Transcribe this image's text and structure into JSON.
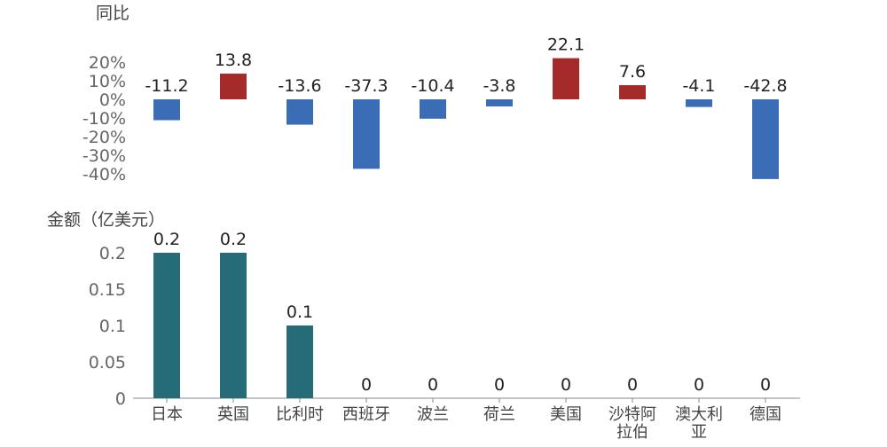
{
  "chart_data": [
    {
      "type": "bar",
      "ylabel": "同比",
      "categories": [
        "日本",
        "英国",
        "比利时",
        "西班牙",
        "波兰",
        "荷兰",
        "美国",
        "沙特阿拉伯",
        "澳大利亚",
        "德国"
      ],
      "series": [
        {
          "values": [
            -11.2,
            13.8,
            -13.6,
            -37.3,
            -10.4,
            -3.8,
            22.1,
            7.6,
            -4.1,
            -42.8
          ],
          "data_labels": [
            "-11.2",
            "13.8",
            "-13.6",
            "-37.3",
            "-10.4",
            "-3.8",
            "22.1",
            "7.6",
            "-4.1",
            "-42.8"
          ]
        }
      ],
      "yticks": [
        "20%",
        "10%",
        "0%",
        "-10%",
        "-20%",
        "-30%",
        "-40%"
      ],
      "ylim": [
        -40,
        20
      ],
      "grid": false,
      "colors": {
        "positive": "#a52a2a",
        "negative": "#3a6db5"
      }
    },
    {
      "type": "bar",
      "ylabel": "金额（亿美元）",
      "categories": [
        "日本",
        "英国",
        "比利时",
        "西班牙",
        "波兰",
        "荷兰",
        "美国",
        "沙特阿拉伯",
        "澳大利亚",
        "德国"
      ],
      "category_label_lines": [
        [
          "日本"
        ],
        [
          "英国"
        ],
        [
          "比利时"
        ],
        [
          "西班牙"
        ],
        [
          "波兰"
        ],
        [
          "荷兰"
        ],
        [
          "美国"
        ],
        [
          "沙特阿",
          "拉伯"
        ],
        [
          "澳大利",
          "亚"
        ],
        [
          "德国"
        ]
      ],
      "series": [
        {
          "values": [
            0.2,
            0.2,
            0.1,
            0,
            0,
            0,
            0,
            0,
            0,
            0
          ],
          "data_labels": [
            "0.2",
            "0.2",
            "0.1",
            "0",
            "0",
            "0",
            "0",
            "0",
            "0",
            "0"
          ]
        }
      ],
      "yticks": [
        "0.2",
        "0.15",
        "0.1",
        "0.05",
        "0"
      ],
      "ylim": [
        0,
        0.2
      ],
      "grid": false,
      "colors": {
        "bar": "#256b78",
        "axis": "#888888"
      }
    }
  ]
}
